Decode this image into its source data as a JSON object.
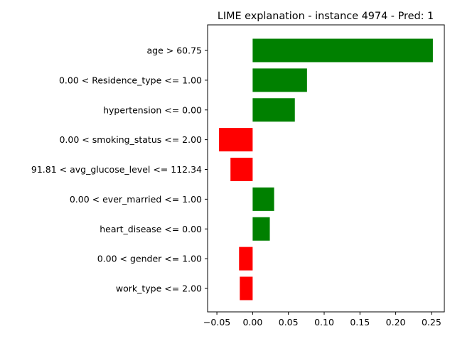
{
  "chart_data": {
    "type": "bar",
    "orientation": "horizontal",
    "title": "LIME explanation - instance 4974 - Pred: 1",
    "xlabel": "",
    "ylabel": "",
    "xlim": [
      -0.063,
      0.268
    ],
    "xticks": [
      {
        "value": -0.05,
        "label": "−0.05"
      },
      {
        "value": 0.0,
        "label": "0.00"
      },
      {
        "value": 0.05,
        "label": "0.05"
      },
      {
        "value": 0.1,
        "label": "0.10"
      },
      {
        "value": 0.15,
        "label": "0.15"
      },
      {
        "value": 0.2,
        "label": "0.20"
      },
      {
        "value": 0.25,
        "label": "0.25"
      }
    ],
    "categories": [
      "age > 60.75",
      "0.00 < Residence_type <= 1.00",
      "hypertension <= 0.00",
      "0.00 < smoking_status <= 2.00",
      "91.81 < avg_glucose_level <= 112.34",
      "0.00 < ever_married <= 1.00",
      "heart_disease <= 0.00",
      "0.00 < gender <= 1.00",
      "work_type <= 2.00"
    ],
    "values": [
      0.252,
      0.076,
      0.059,
      -0.047,
      -0.031,
      0.03,
      0.024,
      -0.019,
      -0.018
    ],
    "colors": {
      "positive": "#008000",
      "negative": "#ff0000"
    },
    "grid": false,
    "legend": "none"
  }
}
